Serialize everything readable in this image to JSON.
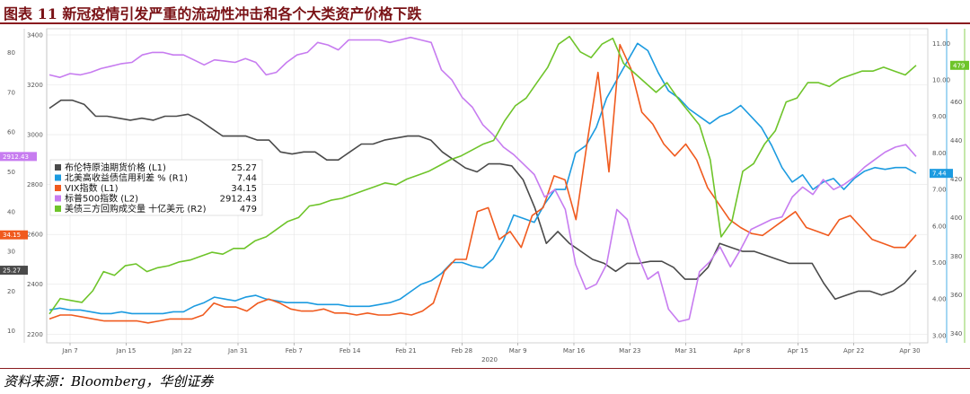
{
  "figure": {
    "title": "图表 11  新冠疫情引发严重的流动性冲击和各个大类资产价格下跌",
    "source": "资料来源：Bloomberg，华创证券"
  },
  "chart_data": {
    "type": "line",
    "year_label": "2020",
    "x_ticks": [
      "Jan 7",
      "Jan 15",
      "Jan 22",
      "Jan 31",
      "Feb 7",
      "Feb 14",
      "Feb 21",
      "Feb 28",
      "Mar 9",
      "Mar 16",
      "Mar 23",
      "Mar 31",
      "Apr 8",
      "Apr 15",
      "Apr 22",
      "Apr 30"
    ],
    "axes": {
      "L1": {
        "ticks": [
          10,
          20,
          30,
          40,
          50,
          60,
          70,
          80
        ],
        "ylim": [
          7,
          86
        ]
      },
      "L2": {
        "ticks": [
          2200,
          2400,
          2600,
          2800,
          3000,
          3200,
          3400
        ],
        "ylim": [
          2165,
          3425
        ]
      },
      "R1": {
        "ticks": [
          "3.00",
          "4.00",
          "5.00",
          "6.00",
          "7.00",
          "8.00",
          "9.00",
          "10.00",
          "11.00"
        ],
        "ylim": [
          2.8,
          11.4
        ]
      },
      "R2": {
        "ticks": [
          340,
          360,
          380,
          400,
          420,
          440,
          460,
          480
        ],
        "ylim": [
          335,
          498
        ]
      }
    },
    "series": [
      {
        "name": "布伦特原油期货价格  (L1)",
        "last": "25.27",
        "axis": "L1",
        "color": "#4a4a4a",
        "values": [
          66,
          68,
          68,
          67,
          64,
          64,
          63.5,
          63,
          63.5,
          63,
          64,
          64,
          64.5,
          63,
          61,
          59,
          59,
          59,
          58,
          58,
          55,
          54.5,
          55,
          55,
          53,
          53,
          55,
          57,
          57,
          58,
          58.5,
          59,
          59,
          58,
          55,
          53,
          51,
          50,
          52,
          52,
          51.5,
          48,
          41,
          32,
          35,
          32,
          30,
          28,
          27,
          25,
          27,
          27,
          27.5,
          27.5,
          26,
          23,
          23,
          26,
          32,
          31,
          30,
          30,
          29,
          28,
          27,
          27,
          27,
          22,
          18,
          19,
          20,
          20,
          19,
          20,
          22,
          25.27
        ]
      },
      {
        "name": "北美高收益债信用利差 % (R1)",
        "last": "7.44",
        "axis": "R1",
        "color": "#1c9be0",
        "values": [
          3.7,
          3.75,
          3.7,
          3.7,
          3.65,
          3.6,
          3.6,
          3.65,
          3.6,
          3.6,
          3.6,
          3.6,
          3.65,
          3.65,
          3.8,
          3.9,
          4.05,
          4.0,
          3.95,
          4.05,
          4.1,
          4.0,
          3.95,
          3.9,
          3.9,
          3.9,
          3.85,
          3.85,
          3.85,
          3.8,
          3.8,
          3.8,
          3.85,
          3.9,
          4.0,
          4.2,
          4.4,
          4.5,
          4.7,
          5.0,
          5.0,
          4.9,
          4.85,
          5.1,
          5.6,
          6.3,
          6.2,
          6.1,
          6.6,
          7.0,
          7.0,
          8.0,
          8.2,
          8.7,
          9.5,
          10.0,
          10.5,
          11.0,
          10.8,
          10.2,
          9.7,
          9.5,
          9.2,
          9.0,
          8.8,
          9.0,
          9.1,
          9.3,
          9.0,
          8.7,
          8.2,
          7.6,
          7.2,
          7.4,
          7.0,
          7.2,
          7.3,
          7.0,
          7.3,
          7.5,
          7.6,
          7.55,
          7.6,
          7.6,
          7.44
        ]
      },
      {
        "name": "VIX指数  (L1)",
        "last": "34.15",
        "axis": "L1",
        "color": "#f05a1e",
        "values": [
          13,
          14,
          14,
          13.5,
          13,
          12.5,
          12.5,
          12.5,
          12.5,
          12,
          12.5,
          13,
          13,
          13,
          14,
          17,
          16,
          16,
          15,
          17,
          18,
          17,
          15.5,
          15,
          15,
          15.5,
          14.5,
          14.5,
          14,
          14.5,
          14,
          14,
          14.5,
          14,
          15,
          17,
          25,
          28,
          28,
          40,
          41,
          33,
          35,
          31,
          39,
          41,
          49,
          48,
          38,
          57,
          75,
          50,
          82,
          76,
          65,
          62,
          57,
          54,
          57,
          53,
          46,
          42,
          38,
          36,
          34.5,
          34,
          36,
          38,
          40,
          36,
          35,
          34,
          38,
          39,
          36,
          33,
          32,
          31,
          31,
          34.15
        ]
      },
      {
        "name": "标普500指数  (L2)",
        "last": "2912.43",
        "axis": "L2",
        "color": "#c77cf0",
        "values": [
          3240,
          3230,
          3245,
          3240,
          3250,
          3265,
          3275,
          3285,
          3290,
          3320,
          3330,
          3330,
          3320,
          3320,
          3300,
          3280,
          3300,
          3295,
          3290,
          3305,
          3290,
          3240,
          3250,
          3290,
          3320,
          3330,
          3370,
          3360,
          3340,
          3380,
          3380,
          3380,
          3380,
          3370,
          3380,
          3390,
          3380,
          3370,
          3260,
          3220,
          3150,
          3110,
          3040,
          3000,
          2950,
          2920,
          2880,
          2840,
          2750,
          2780,
          2700,
          2480,
          2380,
          2400,
          2480,
          2700,
          2660,
          2520,
          2420,
          2450,
          2300,
          2250,
          2260,
          2450,
          2490,
          2550,
          2470,
          2540,
          2620,
          2640,
          2660,
          2670,
          2750,
          2790,
          2760,
          2820,
          2780,
          2800,
          2830,
          2870,
          2900,
          2930,
          2950,
          2960,
          2912.43
        ]
      },
      {
        "name": "美债三方回购成交量 十亿美元  (R2)",
        "last": "479",
        "axis": "R2",
        "color": "#6ec42a",
        "values": [
          350,
          358,
          357,
          356,
          362,
          372,
          370,
          375,
          376,
          372,
          374,
          375,
          377,
          378,
          380,
          382,
          381,
          384,
          384,
          388,
          390,
          394,
          398,
          400,
          406,
          407,
          409,
          410,
          412,
          414,
          416,
          418,
          417,
          420,
          422,
          424,
          427,
          430,
          432,
          435,
          438,
          440,
          450,
          458,
          462,
          470,
          478,
          490,
          494,
          486,
          483,
          490,
          493,
          480,
          475,
          470,
          465,
          470,
          462,
          455,
          448,
          430,
          390,
          398,
          424,
          428,
          438,
          445,
          460,
          462,
          470,
          470,
          468,
          472,
          474,
          476,
          476,
          478,
          476,
          474,
          479
        ]
      }
    ],
    "last_value_badges": [
      {
        "text": "2912.43",
        "color": "#c77cf0"
      },
      {
        "text": "34.15",
        "color": "#f05a1e"
      },
      {
        "text": "25.27",
        "color": "#4a4a4a"
      },
      {
        "text": "7.44",
        "color": "#1c9be0"
      },
      {
        "text": "479",
        "color": "#6ec42a"
      }
    ]
  }
}
